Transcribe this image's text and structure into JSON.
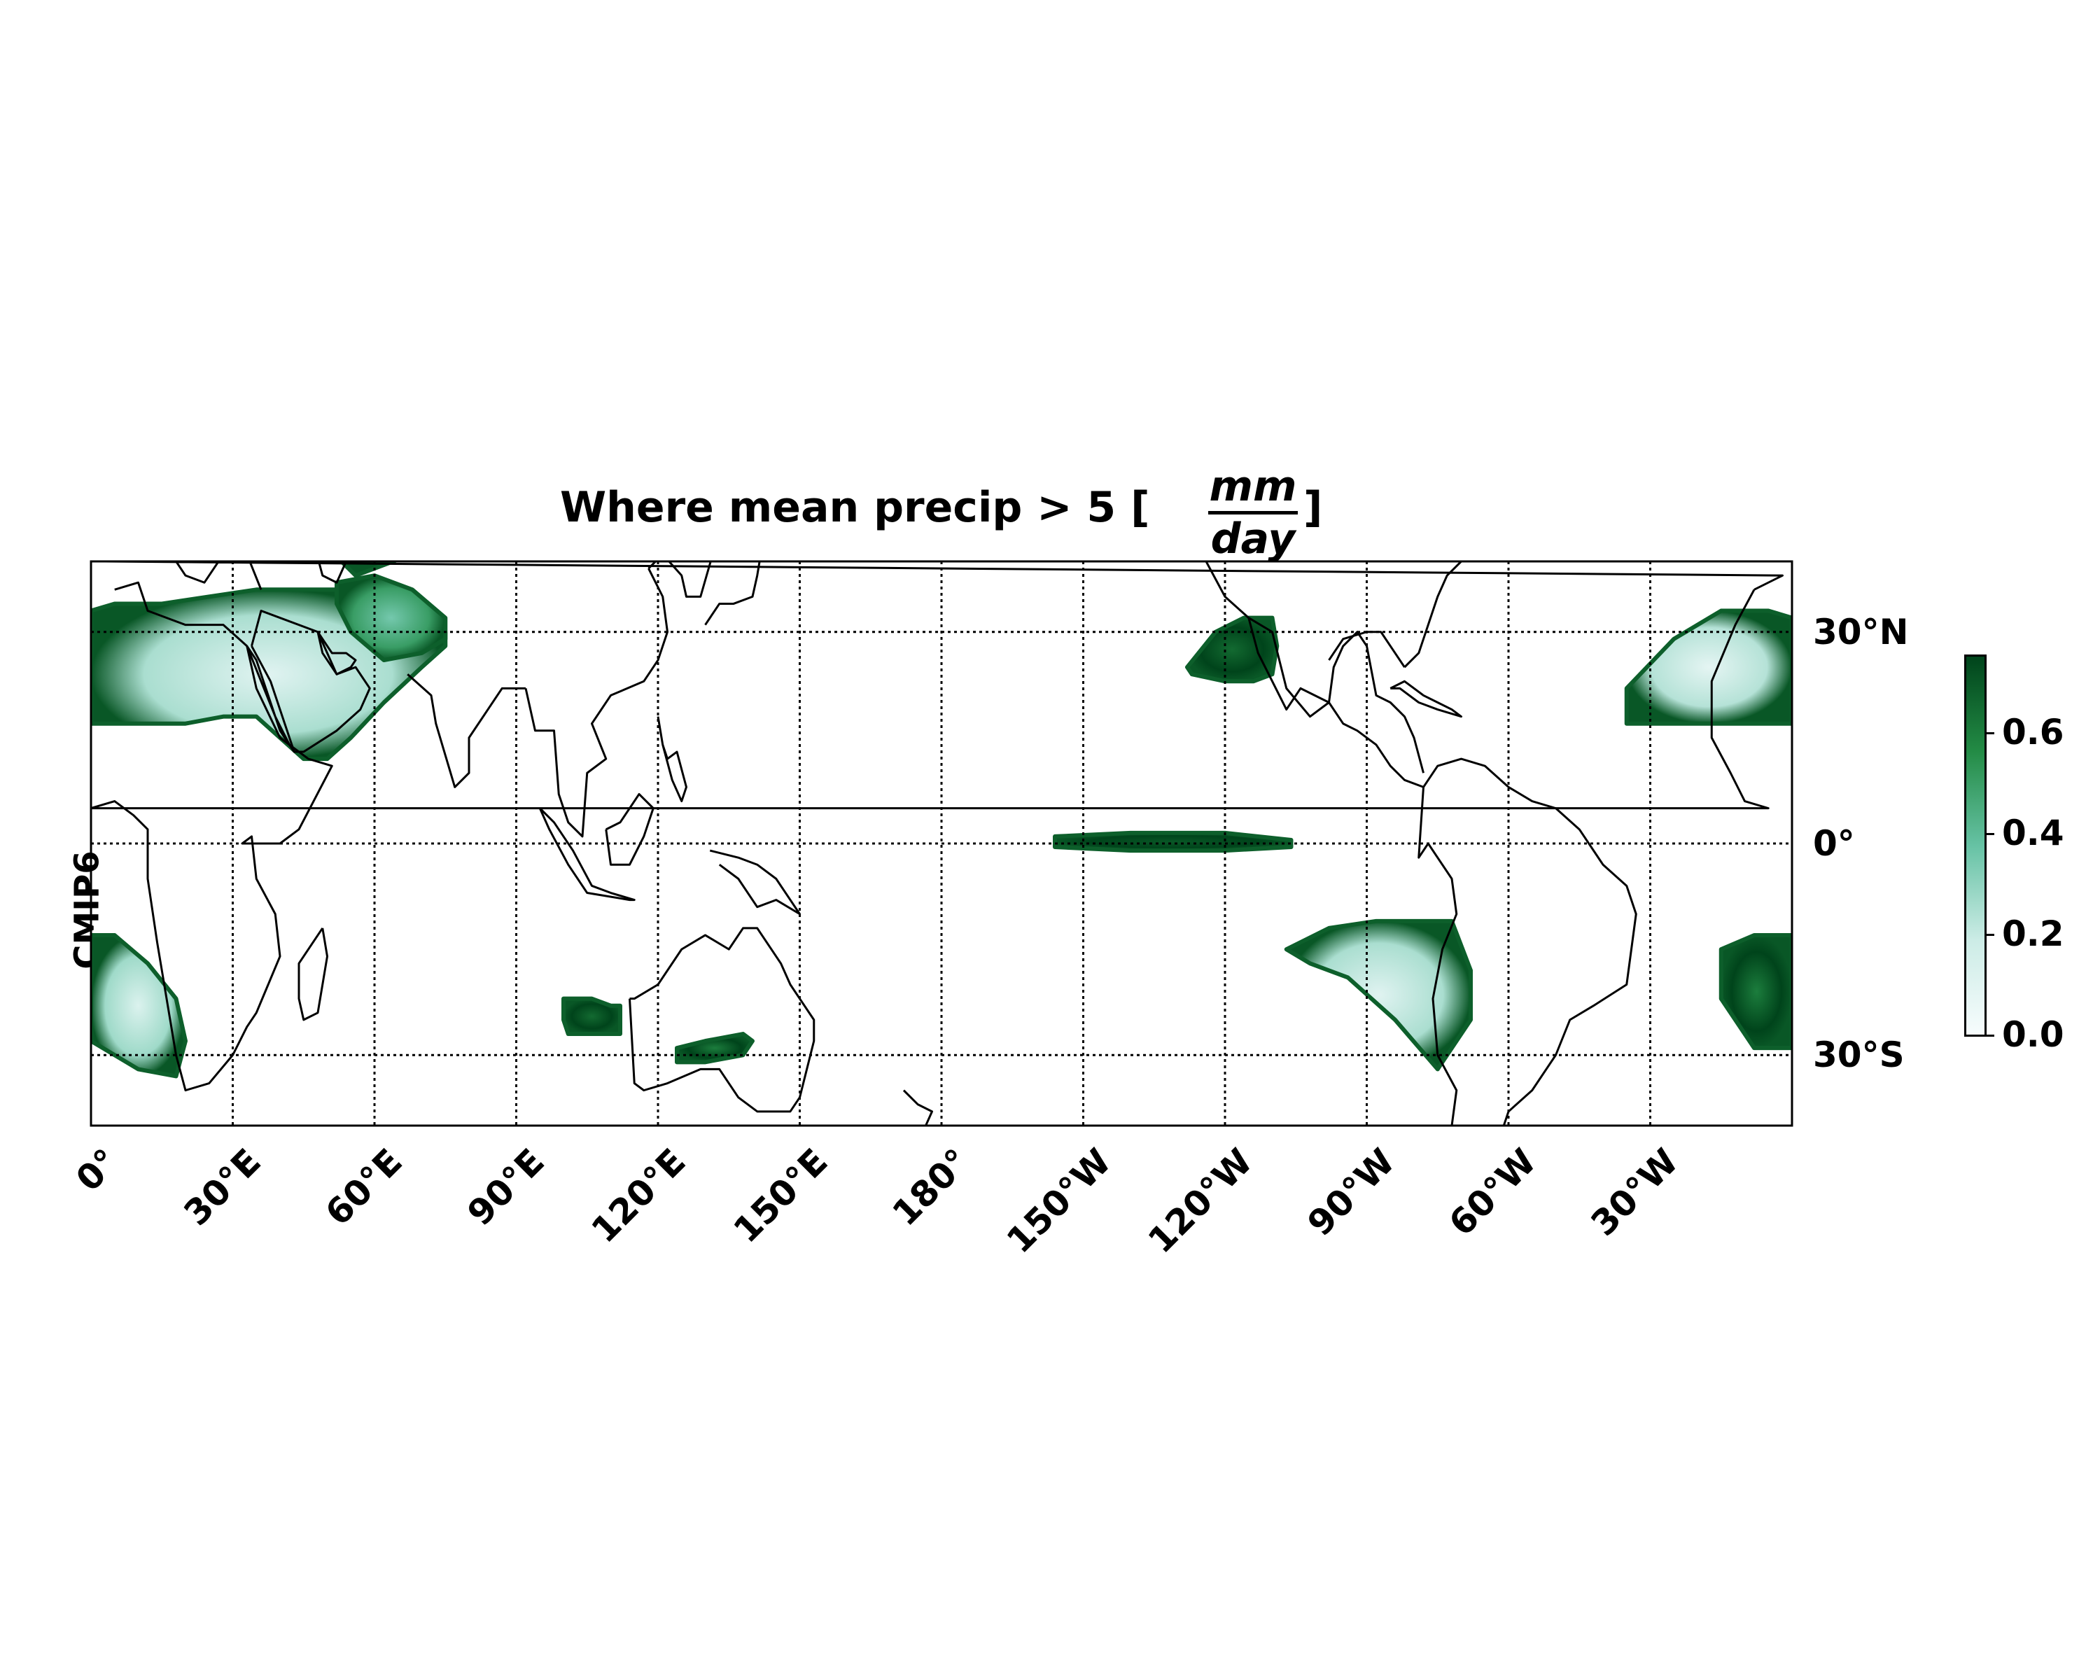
{
  "title": {
    "prefix": "Where mean precip > 5 [",
    "frac_num": "mm",
    "frac_den": "day",
    "suffix": "]"
  },
  "row_label": "CMIP6",
  "map": {
    "projection": "PlateCarree",
    "central_longitude": 180,
    "lon_extent": [
      0,
      360
    ],
    "lat_extent": [
      -40,
      40
    ],
    "gridlines": "dotted"
  },
  "lon_ticks": [
    {
      "lon": 0,
      "label": "0°"
    },
    {
      "lon": 30,
      "label": "30°E"
    },
    {
      "lon": 60,
      "label": "60°E"
    },
    {
      "lon": 90,
      "label": "90°E"
    },
    {
      "lon": 120,
      "label": "120°E"
    },
    {
      "lon": 150,
      "label": "150°E"
    },
    {
      "lon": 180,
      "label": "180°"
    },
    {
      "lon": 210,
      "label": "150°W"
    },
    {
      "lon": 240,
      "label": "120°W"
    },
    {
      "lon": 270,
      "label": "90°W"
    },
    {
      "lon": 300,
      "label": "60°W"
    },
    {
      "lon": 330,
      "label": "30°W"
    }
  ],
  "lat_ticks": [
    {
      "lat": 30,
      "label": "30°N"
    },
    {
      "lat": 0,
      "label": "0°"
    },
    {
      "lat": -30,
      "label": "30°S"
    }
  ],
  "colorbar": {
    "cmap": "BuGn",
    "vmin": 0.0,
    "vmax": 0.75,
    "ticks": [
      {
        "value": 0.0,
        "label": "0.0"
      },
      {
        "value": 0.2,
        "label": "0.2"
      },
      {
        "value": 0.4,
        "label": "0.4"
      },
      {
        "value": 0.6,
        "label": "0.6"
      }
    ],
    "colors": [
      "#f7fcfd",
      "#ccece6",
      "#66c2a4",
      "#238b45",
      "#00441b"
    ]
  },
  "regions": [
    {
      "name": "north-africa-arabia",
      "lons": [
        0,
        5,
        15,
        25,
        35,
        45,
        55,
        62,
        68,
        75,
        75,
        70,
        62,
        55,
        50,
        45,
        40,
        35,
        28,
        20,
        10,
        0
      ],
      "lats": [
        33,
        34,
        34,
        35,
        36,
        36,
        36,
        33,
        30,
        30,
        28,
        25,
        20,
        15,
        12,
        12,
        15,
        18,
        18,
        17,
        17,
        17
      ],
      "inner": 0.1
    },
    {
      "name": "central-asia",
      "lons": [
        50,
        55,
        62,
        70,
        80,
        90,
        100,
        113,
        113,
        100,
        90,
        80,
        72,
        64,
        56,
        50
      ],
      "lats": [
        48,
        48,
        49,
        48,
        47,
        48,
        47,
        47,
        45,
        44,
        43,
        44,
        42,
        40,
        38,
        42
      ],
      "inner": 0.45
    },
    {
      "name": "arabia-north",
      "lons": [
        52,
        60,
        68,
        75,
        75,
        70,
        62,
        55,
        52
      ],
      "lats": [
        37,
        38,
        36,
        32,
        29,
        27,
        26,
        30,
        34
      ],
      "inner": 0.35
    },
    {
      "name": "north-atlantic-azores",
      "lons": [
        325,
        335,
        345,
        355,
        360,
        360,
        350,
        340,
        332,
        325
      ],
      "lats": [
        22,
        29,
        33,
        33,
        32,
        17,
        17,
        17,
        17,
        17
      ],
      "inner": 0.08
    },
    {
      "name": "south-atlantic-east",
      "lons": [
        345,
        352,
        360,
        360,
        352,
        345
      ],
      "lats": [
        -15,
        -13,
        -13,
        -29,
        -29,
        -22
      ],
      "inner": 0.6
    },
    {
      "name": "south-africa-west",
      "lons": [
        0,
        5,
        12,
        18,
        20,
        18,
        10,
        0
      ],
      "lats": [
        -13,
        -13,
        -17,
        -22,
        -28,
        -33,
        -32,
        -28
      ],
      "inner": 0.12
    },
    {
      "name": "east-pacific-north",
      "lons": [
        232,
        238,
        244,
        250,
        251,
        250,
        246,
        240,
        233
      ],
      "lats": [
        25,
        30,
        32,
        32,
        28,
        24,
        23,
        23,
        24
      ],
      "inner": 0.65
    },
    {
      "name": "equatorial-pacific",
      "lons": [
        204,
        220,
        240,
        254,
        254,
        240,
        220,
        204
      ],
      "lats": [
        1,
        1.5,
        1.5,
        0.5,
        -0.5,
        -1,
        -1,
        -0.5
      ],
      "inner": 0.7
    },
    {
      "name": "southeast-pacific",
      "lons": [
        253,
        262,
        272,
        288,
        292,
        292,
        285,
        276,
        266,
        258
      ],
      "lats": [
        -15,
        -12,
        -11,
        -11,
        -18,
        -25,
        -32,
        -25,
        -19,
        -17
      ],
      "inner": 0.1
    },
    {
      "name": "south-indian-west-aus",
      "lons": [
        100,
        106,
        110,
        112,
        112,
        107,
        101,
        100
      ],
      "lats": [
        -22,
        -22,
        -23,
        -23,
        -27,
        -27,
        -27,
        -25
      ],
      "inner": 0.65
    },
    {
      "name": "south-australia",
      "lons": [
        124,
        130,
        138,
        140,
        138,
        130,
        124
      ],
      "lats": [
        -29,
        -28,
        -27,
        -28,
        -30,
        -31,
        -31
      ],
      "inner": 0.6
    }
  ],
  "coastlines": [
    {
      "name": "south-america",
      "lons": [
        282,
        285,
        290,
        295,
        300,
        305,
        310,
        315,
        320,
        325,
        327,
        325,
        318,
        313,
        310,
        305,
        300,
        298,
        295,
        293,
        292,
        290,
        288,
        287,
        289,
        285,
        284,
        286,
        289,
        288,
        285,
        283,
        281,
        282
      ],
      "lats": [
        8,
        11,
        12,
        11,
        8,
        6,
        5,
        2,
        -3,
        -6,
        -10,
        -20,
        -23,
        -25,
        -30,
        -35,
        -38,
        -42,
        -46,
        -50,
        -53,
        -55,
        -53,
        -45,
        -35,
        -30,
        -22,
        -15,
        -10,
        -5,
        -2,
        0,
        -2,
        8
      ]
    },
    {
      "name": "central-america-mexico",
      "lons": [
        282,
        278,
        275,
        272,
        268,
        265,
        262,
        256,
        253,
        247,
        245,
        250,
        253,
        258,
        262,
        263,
        265,
        268,
        270,
        272,
        275,
        278,
        280,
        282
      ],
      "lats": [
        8,
        9,
        11,
        14,
        16,
        17,
        20,
        22,
        19,
        27,
        32,
        30,
        22,
        18,
        20,
        25,
        28,
        30,
        28,
        21,
        20,
        18,
        15,
        10
      ]
    },
    {
      "name": "north-america-west",
      "lons": [
        245,
        240,
        236,
        234,
        236,
        237,
        230,
        225
      ],
      "lats": [
        32,
        35,
        40,
        45,
        50,
        57,
        58,
        60
      ]
    },
    {
      "name": "north-america-east",
      "lons": [
        278,
        281,
        283,
        285,
        287,
        290,
        292,
        294,
        296,
        300,
        304
      ],
      "lats": [
        25,
        27,
        31,
        35,
        38,
        40,
        42,
        44,
        46,
        48,
        52
      ]
    },
    {
      "name": "florida-gulf",
      "lons": [
        278,
        276,
        273,
        270,
        265,
        262
      ],
      "lats": [
        25,
        27,
        30,
        30,
        29,
        26
      ]
    },
    {
      "name": "africa-west-east",
      "lons": [
        352,
        348,
        343,
        343,
        347,
        350,
        355,
        0,
        5,
        9,
        12,
        12,
        14,
        18,
        20,
        25,
        30,
        33,
        35,
        40,
        39,
        35,
        34,
        32,
        33,
        40,
        44,
        51,
        46,
        40,
        35,
        33,
        28,
        20,
        12,
        10,
        5
      ],
      "lats": [
        36,
        31,
        23,
        15,
        10,
        6,
        5,
        5,
        6,
        4,
        2,
        -5,
        -14,
        -30,
        -35,
        -34,
        -30,
        -26,
        -24,
        -16,
        -10,
        -5,
        1,
        0,
        0,
        0,
        2,
        11,
        12,
        15,
        22,
        28,
        31,
        31,
        33,
        37,
        36
      ]
    },
    {
      "name": "arabia",
      "lons": [
        34,
        38,
        43,
        45,
        52,
        57,
        59,
        56,
        52,
        49,
        48,
        36,
        34
      ],
      "lats": [
        28,
        23,
        13,
        13,
        16,
        19,
        22,
        25,
        24,
        27,
        30,
        33,
        28
      ]
    },
    {
      "name": "india",
      "lons": [
        67,
        72,
        73,
        77,
        80,
        80,
        84,
        87,
        89,
        92
      ],
      "lats": [
        24,
        21,
        17,
        8,
        10,
        15,
        19,
        22,
        22,
        22
      ]
    },
    {
      "name": "southeast-asia",
      "lons": [
        92,
        94,
        98,
        99,
        101,
        104,
        105,
        109,
        106,
        110,
        117,
        120,
        122,
        121,
        118
      ],
      "lats": [
        22,
        16,
        16,
        7,
        3,
        1,
        10,
        12,
        17,
        21,
        23,
        26,
        30,
        35,
        39
      ]
    },
    {
      "name": "east-asia-north",
      "lons": [
        118,
        121,
        125,
        126,
        129,
        132,
        135,
        140,
        142,
        145
      ],
      "lats": [
        39,
        41,
        38,
        35,
        35,
        42,
        44,
        49,
        54,
        58
      ]
    },
    {
      "name": "japan",
      "lons": [
        130,
        133,
        136,
        140,
        141,
        142,
        141,
        140
      ],
      "lats": [
        31,
        34,
        34,
        35,
        38,
        42,
        44,
        43
      ]
    },
    {
      "name": "australia",
      "lons": [
        114,
        115,
        117,
        122,
        129,
        133,
        137,
        141,
        145,
        148,
        150,
        153,
        153,
        150,
        148,
        146,
        141,
        138,
        135,
        130,
        125,
        120,
        115,
        114
      ],
      "lats": [
        -22,
        -34,
        -35,
        -34,
        -32,
        -32,
        -36,
        -38,
        -38,
        -38,
        -36,
        -28,
        -25,
        -22,
        -20,
        -17,
        -12,
        -12,
        -15,
        -13,
        -15,
        -20,
        -22,
        -22
      ]
    },
    {
      "name": "new-zealand",
      "lons": [
        172,
        175,
        178,
        176,
        174,
        172,
        168,
        167,
        170,
        172
      ],
      "lats": [
        -35,
        -37,
        -38,
        -41,
        -42,
        -41,
        -45,
        -47,
        -46,
        -42
      ]
    },
    {
      "name": "new-guinea",
      "lons": [
        131,
        137,
        141,
        145,
        148,
        150,
        145,
        141,
        137,
        133
      ],
      "lats": [
        -1,
        -2,
        -3,
        -5,
        -8,
        -10,
        -8,
        -9,
        -5,
        -3
      ]
    },
    {
      "name": "borneo",
      "lons": [
        109,
        112,
        116,
        119,
        117,
        114,
        110,
        109
      ],
      "lats": [
        2,
        3,
        7,
        5,
        1,
        -3,
        -3,
        2
      ]
    },
    {
      "name": "sumatra-java",
      "lons": [
        95,
        98,
        102,
        106,
        106,
        110,
        115,
        114,
        105,
        101,
        97,
        95
      ],
      "lats": [
        5,
        3,
        -1,
        -6,
        -6,
        -7,
        -8,
        -8,
        -7,
        -3,
        2,
        5
      ]
    },
    {
      "name": "philippines",
      "lons": [
        120,
        121,
        122,
        124,
        126,
        125,
        123,
        121,
        120
      ],
      "lats": [
        18,
        14,
        12,
        13,
        8,
        6,
        9,
        14,
        18
      ]
    },
    {
      "name": "madagascar",
      "lons": [
        49,
        50,
        48,
        45,
        44,
        44,
        47,
        49
      ],
      "lats": [
        -12,
        -16,
        -24,
        -25,
        -22,
        -17,
        -14,
        -12
      ]
    },
    {
      "name": "europe-med-north",
      "lons": [
        352,
        358,
        3,
        8,
        12,
        16,
        18,
        20,
        24,
        28,
        33,
        36
      ],
      "lats": [
        36,
        38,
        40,
        44,
        44,
        40,
        40,
        38,
        37,
        41,
        41,
        36
      ]
    },
    {
      "name": "black-caspian",
      "lons": [
        28,
        32,
        36,
        41,
        39,
        34,
        28
      ],
      "lats": [
        41,
        46,
        47,
        42,
        41,
        42,
        41
      ]
    },
    {
      "name": "caspian",
      "lons": [
        47,
        50,
        53,
        54,
        52,
        49,
        47
      ],
      "lats": [
        43,
        46,
        45,
        40,
        37,
        38,
        43
      ]
    },
    {
      "name": "red-sea",
      "lons": [
        33,
        35,
        38,
        40,
        43,
        42,
        39,
        36,
        33
      ],
      "lats": [
        28,
        26,
        20,
        16,
        13,
        14,
        18,
        23,
        28
      ]
    },
    {
      "name": "persian-gulf",
      "lons": [
        48,
        50,
        52,
        55,
        56,
        54,
        51,
        48
      ],
      "lats": [
        30,
        27,
        24,
        25,
        26,
        27,
        27,
        30
      ]
    },
    {
      "name": "cuba-hispaniola",
      "lons": [
        275,
        278,
        282,
        285,
        288,
        290,
        285,
        281,
        277,
        275
      ],
      "lats": [
        22,
        23,
        21,
        20,
        19,
        18,
        19,
        20,
        22,
        22
      ]
    },
    {
      "name": "greenland-tip",
      "lons": [
        310,
        315,
        320,
        325
      ],
      "lats": [
        59,
        61,
        60,
        60
      ]
    },
    {
      "name": "iceland-europe-north",
      "lons": [
        347,
        352,
        356,
        0,
        5,
        8,
        10
      ],
      "lats": [
        54,
        56,
        58,
        59,
        58,
        56,
        54
      ]
    }
  ]
}
